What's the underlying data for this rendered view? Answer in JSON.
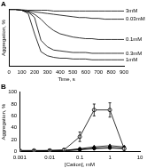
{
  "chart_data": [
    {
      "type": "line",
      "title": "A",
      "x": [
        0,
        50,
        100,
        150,
        200,
        250,
        300,
        350,
        400,
        450,
        500,
        550,
        600,
        650,
        700,
        750,
        800,
        850,
        900
      ],
      "x_label": "Time, s",
      "y_label": "Aggregation, %",
      "xlim": [
        0,
        900
      ],
      "xticks": [
        0,
        100,
        200,
        300,
        400,
        500,
        600,
        700,
        800,
        900
      ],
      "ylim": [
        70,
        0
      ],
      "tick_labels": "x",
      "series": [
        {
          "name": "3mM",
          "color": "#000000",
          "values": [
            0,
            0,
            0,
            1,
            1,
            1,
            1,
            2,
            2,
            2,
            2,
            2,
            2,
            2,
            2,
            2,
            2,
            2,
            2
          ]
        },
        {
          "name": "0.03mM",
          "color": "#000000",
          "values": [
            0,
            0,
            1,
            2,
            3,
            4,
            5,
            6,
            7,
            8,
            9,
            10,
            10,
            11,
            11,
            12,
            12,
            12,
            12
          ]
        },
        {
          "name": "0.1mM",
          "color": "#000000",
          "values": [
            0,
            0,
            1,
            3,
            6,
            12,
            20,
            26,
            30,
            32,
            34,
            35,
            36,
            36,
            37,
            37,
            37,
            37,
            37
          ]
        },
        {
          "name": "0.3mM",
          "color": "#000000",
          "values": [
            0,
            0,
            1,
            3,
            10,
            38,
            46,
            50,
            51,
            52,
            53,
            53,
            53,
            54,
            54,
            54,
            54,
            54,
            54
          ]
        },
        {
          "name": "1mM",
          "color": "#000000",
          "values": [
            0,
            0,
            1,
            5,
            30,
            52,
            57,
            59,
            60,
            60,
            61,
            61,
            61,
            62,
            62,
            62,
            62,
            62,
            62
          ]
        }
      ]
    },
    {
      "type": "line",
      "title": "B",
      "x": [
        0.001,
        0.003,
        0.01,
        0.03,
        0.1,
        0.3,
        1,
        3
      ],
      "x_label": "[Cation], mM",
      "y_label": "Aggregation, %",
      "log": "x",
      "xlim": [
        0.001,
        10
      ],
      "xticks": [
        0.001,
        0.01,
        0.1,
        1,
        10
      ],
      "ylim": [
        0,
        100
      ],
      "yticks": [
        0,
        20,
        40,
        60,
        80,
        100
      ],
      "series": [
        {
          "color": "#000000",
          "marker": "open-circle",
          "values": [
            2,
            2,
            2,
            3,
            25,
            70,
            70,
            5
          ],
          "errors": [
            1,
            1,
            1,
            2,
            8,
            10,
            12,
            4
          ]
        },
        {
          "color": "#000000",
          "marker": "triangle",
          "values": [
            1,
            1,
            1,
            2,
            5,
            8,
            10,
            8
          ]
        },
        {
          "color": "#000000",
          "marker": "square",
          "values": [
            1,
            1,
            2,
            2,
            4,
            6,
            7,
            6
          ]
        },
        {
          "color": "#000000",
          "marker": "diamond",
          "values": [
            0,
            1,
            1,
            1,
            3,
            5,
            6,
            5
          ]
        }
      ]
    }
  ]
}
